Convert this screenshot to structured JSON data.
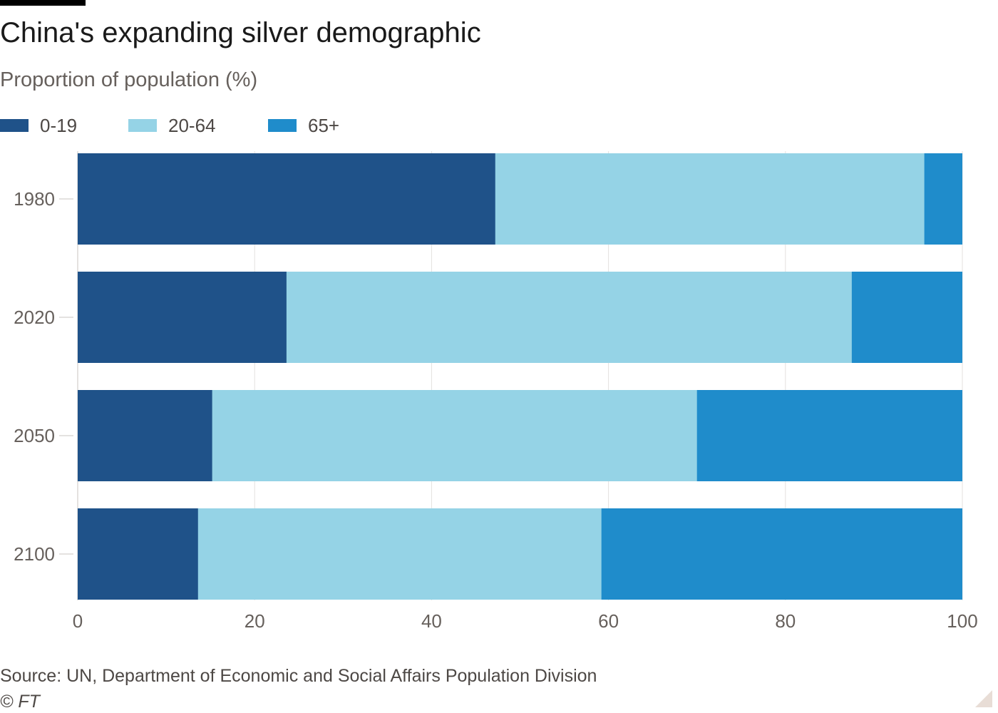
{
  "title": "China's expanding silver demographic",
  "subtitle": "Proportion of population (%)",
  "source": "Source: UN, Department of Economic and Social Affairs Population Division",
  "credit": "© FT",
  "colors": {
    "0-19": "#1f5289",
    "20-64": "#95d3e6",
    "65+": "#1f8ccb",
    "grid": "#e4e1df",
    "axis_text": "#66605c"
  },
  "chart_data": {
    "type": "bar",
    "orientation": "horizontal",
    "stacked": true,
    "title": "China's expanding silver demographic",
    "subtitle": "Proportion of population (%)",
    "categories": [
      "1980",
      "2020",
      "2050",
      "2100"
    ],
    "series": [
      {
        "name": "0-19",
        "values": [
          47.2,
          23.6,
          15.2,
          13.6
        ]
      },
      {
        "name": "20-64",
        "values": [
          48.5,
          63.9,
          54.8,
          45.6
        ]
      },
      {
        "name": "65+",
        "values": [
          4.3,
          12.5,
          30.0,
          40.8
        ]
      }
    ],
    "xlim": [
      0,
      100
    ],
    "xticks": [
      "0",
      "20",
      "40",
      "60",
      "80",
      "100"
    ],
    "grid": true,
    "legend": "top-left"
  }
}
